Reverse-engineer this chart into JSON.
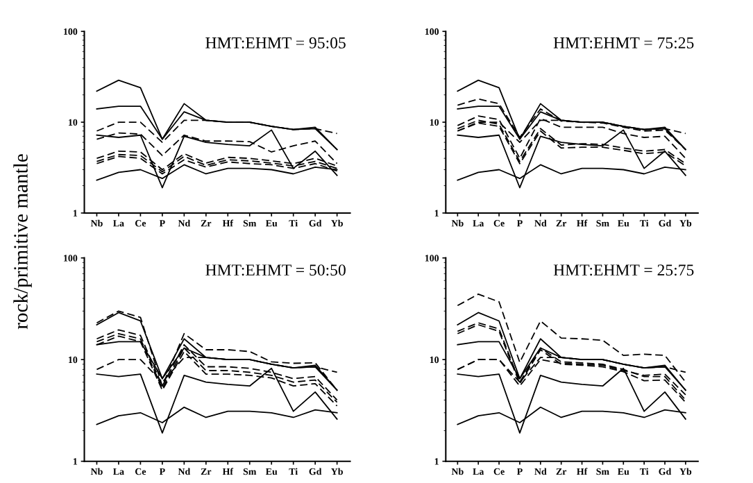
{
  "chart_data": [
    {
      "type": "line",
      "ylabel": "rock/primitive mantle",
      "annotations": [
        "HMT:EHMT = 95:05"
      ],
      "categories": [
        "Nb",
        "La",
        "Ce",
        "P",
        "Nd",
        "Zr",
        "Hf",
        "Sm",
        "Eu",
        "Ti",
        "Gd",
        "Yb"
      ],
      "log": true,
      "ylim": [
        1,
        100
      ],
      "yticks": [
        1,
        10,
        100
      ],
      "series": [
        {
          "color": "#000000",
          "line_style": "solid",
          "values": [
            22,
            29,
            24,
            6.5,
            16,
            10.5,
            10,
            10,
            9,
            8.3,
            8.5,
            5
          ]
        },
        {
          "color": "#000000",
          "line_style": "solid",
          "values": [
            14,
            15,
            15,
            6.5,
            13,
            10.5,
            10,
            10,
            9,
            8.3,
            8.8,
            5
          ]
        },
        {
          "color": "#000000",
          "line_style": "dashed",
          "values": [
            8,
            10,
            10,
            6,
            10.5,
            10.5,
            10,
            10,
            9,
            8.3,
            8.5,
            7.5
          ]
        },
        {
          "color": "#000000",
          "line_style": "solid",
          "values": [
            7.2,
            6.8,
            7.2,
            1.9,
            7,
            6,
            5.7,
            5.5,
            8.2,
            3.1,
            4.8,
            2.6
          ]
        },
        {
          "color": "#000000",
          "line_style": "solid",
          "values": [
            2.3,
            2.8,
            3,
            2.4,
            3.4,
            2.7,
            3.1,
            3.1,
            3,
            2.7,
            3.2,
            3
          ]
        },
        {
          "color": "#000000",
          "line_style": "dashed",
          "values": [
            6.5,
            7.6,
            7.4,
            4.3,
            7.2,
            6.2,
            6.2,
            6.1,
            4.7,
            5.5,
            6.2,
            3.5
          ]
        },
        {
          "color": "#000000",
          "line_style": "dashed",
          "values": [
            4,
            4.8,
            4.7,
            3,
            4.5,
            3.55,
            4.1,
            4,
            3.75,
            3.5,
            4,
            3.3
          ]
        },
        {
          "color": "#000000",
          "line_style": "dashed",
          "values": [
            3.7,
            4.4,
            4.3,
            2.85,
            4.2,
            3.35,
            3.85,
            3.75,
            3.55,
            3.3,
            3.7,
            3.1
          ]
        },
        {
          "color": "#000000",
          "line_style": "dashed",
          "values": [
            3.5,
            4.2,
            4,
            2.7,
            3.85,
            3.2,
            3.65,
            3.5,
            3.4,
            3.1,
            3.5,
            2.9
          ]
        }
      ]
    },
    {
      "type": "line",
      "annotations": [
        "HMT:EHMT = 75:25"
      ],
      "categories": [
        "Nb",
        "La",
        "Ce",
        "P",
        "Nd",
        "Zr",
        "Hf",
        "Sm",
        "Eu",
        "Ti",
        "Gd",
        "Yb"
      ],
      "log": true,
      "ylim": [
        1,
        100
      ],
      "yticks": [
        1,
        10,
        100
      ],
      "series": [
        {
          "color": "#000000",
          "line_style": "solid",
          "values": [
            22,
            29,
            24,
            6.5,
            16,
            10.5,
            10,
            10,
            9,
            8.3,
            8.5,
            5
          ]
        },
        {
          "color": "#000000",
          "line_style": "solid",
          "values": [
            14,
            15,
            15,
            6.5,
            13,
            10.5,
            10,
            10,
            9,
            8.3,
            8.8,
            5
          ]
        },
        {
          "color": "#000000",
          "line_style": "dashed",
          "values": [
            8,
            10,
            10,
            6,
            10.5,
            10.5,
            10,
            10,
            9,
            8.3,
            8.5,
            7.5
          ]
        },
        {
          "color": "#000000",
          "line_style": "solid",
          "values": [
            7.2,
            6.8,
            7.2,
            1.9,
            7,
            6,
            5.7,
            5.5,
            8.2,
            3.1,
            4.8,
            2.6
          ]
        },
        {
          "color": "#000000",
          "line_style": "solid",
          "values": [
            2.3,
            2.8,
            3,
            2.4,
            3.4,
            2.7,
            3.1,
            3.1,
            3,
            2.7,
            3.2,
            3
          ]
        },
        {
          "color": "#000000",
          "line_style": "dashed",
          "values": [
            15.4,
            18,
            16,
            6.8,
            14,
            10.3,
            10,
            9.8,
            8.8,
            8,
            8.2,
            5
          ]
        },
        {
          "color": "#000000",
          "line_style": "dashed",
          "values": [
            9.2,
            11.7,
            10.7,
            4,
            11,
            8.8,
            8.8,
            8.8,
            7.5,
            6.8,
            7,
            4
          ]
        },
        {
          "color": "#000000",
          "line_style": "dashed",
          "values": [
            8.5,
            10.5,
            9.5,
            3.7,
            8.5,
            5.6,
            5.8,
            5.7,
            5.2,
            4.8,
            5,
            3.5
          ]
        },
        {
          "color": "#000000",
          "line_style": "dashed",
          "values": [
            8,
            9.8,
            9,
            3.5,
            8,
            5.2,
            5.3,
            5.3,
            4.9,
            4.5,
            4.7,
            3.3
          ]
        }
      ]
    },
    {
      "type": "line",
      "annotations": [
        "HMT:EHMT = 50:50"
      ],
      "categories": [
        "Nb",
        "La",
        "Ce",
        "P",
        "Nd",
        "Zr",
        "Hf",
        "Sm",
        "Eu",
        "Ti",
        "Gd",
        "Yb"
      ],
      "log": true,
      "ylim": [
        1,
        100
      ],
      "yticks": [
        1,
        10,
        100
      ],
      "series": [
        {
          "color": "#000000",
          "line_style": "solid",
          "values": [
            22,
            29,
            24,
            6.5,
            16,
            10.5,
            10,
            10,
            9,
            8.3,
            8.5,
            5
          ]
        },
        {
          "color": "#000000",
          "line_style": "solid",
          "values": [
            14,
            15,
            15,
            6.5,
            13,
            10.5,
            10,
            10,
            9,
            8.3,
            8.8,
            5
          ]
        },
        {
          "color": "#000000",
          "line_style": "dashed",
          "values": [
            8,
            10,
            10,
            6,
            10.5,
            10.5,
            10,
            10,
            9,
            8.3,
            8.5,
            7.5
          ]
        },
        {
          "color": "#000000",
          "line_style": "solid",
          "values": [
            7.2,
            6.8,
            7.2,
            1.9,
            7,
            6,
            5.7,
            5.5,
            8.2,
            3.1,
            4.8,
            2.6
          ]
        },
        {
          "color": "#000000",
          "line_style": "solid",
          "values": [
            2.3,
            2.8,
            3,
            2.4,
            3.4,
            2.7,
            3.1,
            3.1,
            3,
            2.7,
            3.2,
            3
          ]
        },
        {
          "color": "#000000",
          "line_style": "dashed",
          "values": [
            23,
            30,
            26,
            5.5,
            18,
            12.5,
            12.5,
            12,
            9.5,
            9.2,
            9.3,
            5
          ]
        },
        {
          "color": "#000000",
          "line_style": "dashed",
          "values": [
            16,
            19.6,
            17.3,
            5.5,
            14,
            8.5,
            8.5,
            8.2,
            7.5,
            6.5,
            6.8,
            4
          ]
        },
        {
          "color": "#000000",
          "line_style": "dashed",
          "values": [
            15,
            18,
            16,
            5.2,
            13,
            7.8,
            7.8,
            7.5,
            7,
            6,
            6.3,
            3.8
          ]
        },
        {
          "color": "#000000",
          "line_style": "dashed",
          "values": [
            14,
            17,
            15,
            5,
            12,
            7.2,
            7.2,
            7,
            6.6,
            5.5,
            5.8,
            3.5
          ]
        }
      ]
    },
    {
      "type": "line",
      "annotations": [
        "HMT:EHMT = 25:75"
      ],
      "categories": [
        "Nb",
        "La",
        "Ce",
        "P",
        "Nd",
        "Zr",
        "Hf",
        "Sm",
        "Eu",
        "Ti",
        "Gd",
        "Yb"
      ],
      "log": true,
      "ylim": [
        1,
        100
      ],
      "yticks": [
        1,
        10,
        100
      ],
      "series": [
        {
          "color": "#000000",
          "line_style": "solid",
          "values": [
            22,
            29,
            24,
            6.5,
            16,
            10.5,
            10,
            10,
            9,
            8.3,
            8.5,
            5
          ]
        },
        {
          "color": "#000000",
          "line_style": "solid",
          "values": [
            14,
            15,
            15,
            6.5,
            13,
            10.5,
            10,
            10,
            9,
            8.3,
            8.8,
            5
          ]
        },
        {
          "color": "#000000",
          "line_style": "dashed",
          "values": [
            8,
            10,
            10,
            6,
            10.5,
            10.5,
            10,
            10,
            9,
            8.3,
            8.5,
            7.5
          ]
        },
        {
          "color": "#000000",
          "line_style": "solid",
          "values": [
            7.2,
            6.8,
            7.2,
            1.9,
            7,
            6,
            5.7,
            5.5,
            8.2,
            3.1,
            4.8,
            2.6
          ]
        },
        {
          "color": "#000000",
          "line_style": "solid",
          "values": [
            2.3,
            2.8,
            3,
            2.4,
            3.4,
            2.7,
            3.1,
            3.1,
            3,
            2.7,
            3.2,
            3
          ]
        },
        {
          "color": "#000000",
          "line_style": "dashed",
          "values": [
            34,
            44,
            37,
            9.4,
            24,
            16.3,
            16,
            15.5,
            11,
            11.3,
            11,
            6
          ]
        },
        {
          "color": "#000000",
          "line_style": "dashed",
          "values": [
            19,
            23,
            20,
            6,
            13,
            9.5,
            9.3,
            9,
            8,
            6.8,
            6.8,
            4
          ]
        },
        {
          "color": "#000000",
          "line_style": "dashed",
          "values": [
            18,
            22,
            19,
            5.8,
            12.5,
            9,
            8.8,
            8.5,
            7.6,
            6.2,
            6.3,
            3.8
          ]
        },
        {
          "color": "#000000",
          "line_style": "dashed",
          "values": [
            8,
            10,
            10,
            5.5,
            10,
            9.2,
            9,
            8.8,
            7.8,
            7,
            7.2,
            4.5
          ]
        }
      ]
    }
  ]
}
